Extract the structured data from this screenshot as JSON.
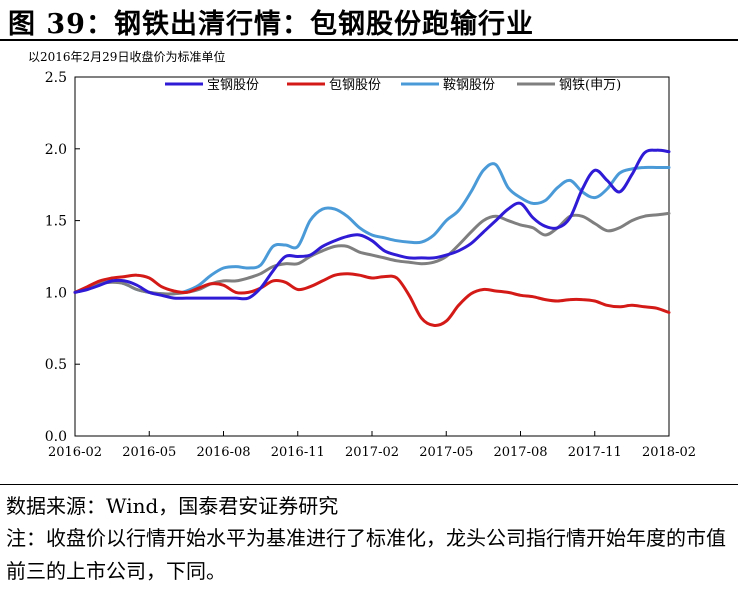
{
  "figure": {
    "title": "图 39：钢铁出清行情：包钢股份跑输行业",
    "subtitle": "以2016年2月29日收盘价为标准单位",
    "source": "数据来源：Wind，国泰君安证券研究",
    "note": "注：收盘价以行情开始水平为基准进行了标准化，龙头公司指行情开始年度的市值前三的上市公司，下同。"
  },
  "chart_data": {
    "type": "line",
    "title": "",
    "xlabel": "",
    "ylabel": "",
    "x_ticks": [
      "2016-02",
      "2016-05",
      "2016-08",
      "2016-11",
      "2017-02",
      "2017-05",
      "2017-08",
      "2017-11",
      "2018-02"
    ],
    "x_range": [
      0,
      24
    ],
    "ylim": [
      0,
      2.5
    ],
    "y_ticks": [
      0.0,
      0.5,
      1.0,
      1.5,
      2.0,
      2.5
    ],
    "y_tick_labels": [
      "0.0",
      "0.5",
      "1.0",
      "1.5",
      "2.0",
      "2.5"
    ],
    "legend_position": "top",
    "series": [
      {
        "name": "宝钢股份",
        "color": "#2f1ad6",
        "x": [
          0,
          0.5,
          1,
          1.5,
          2,
          2.5,
          3,
          3.5,
          4,
          4.5,
          5,
          5.5,
          6,
          6.5,
          7,
          7.5,
          8,
          8.5,
          9,
          9.5,
          10,
          10.5,
          11,
          11.5,
          12,
          12.5,
          13,
          13.5,
          14,
          14.5,
          15,
          15.5,
          16,
          16.5,
          17,
          17.5,
          18,
          18.5,
          19,
          19.5,
          20,
          20.5,
          21,
          21.5,
          22,
          22.5,
          23,
          23.5,
          24
        ],
        "values": [
          1.0,
          1.02,
          1.05,
          1.08,
          1.08,
          1.05,
          1.0,
          0.98,
          0.96,
          0.96,
          0.96,
          0.96,
          0.96,
          0.96,
          0.96,
          1.03,
          1.15,
          1.25,
          1.25,
          1.26,
          1.32,
          1.36,
          1.39,
          1.4,
          1.36,
          1.29,
          1.26,
          1.24,
          1.24,
          1.24,
          1.26,
          1.29,
          1.34,
          1.42,
          1.5,
          1.58,
          1.62,
          1.52,
          1.46,
          1.45,
          1.52,
          1.72,
          1.85,
          1.78,
          1.7,
          1.82,
          1.97,
          1.99,
          1.98
        ]
      },
      {
        "name": "包钢股份",
        "color": "#d41a17",
        "x": [
          0,
          0.5,
          1,
          1.5,
          2,
          2.5,
          3,
          3.5,
          4,
          4.5,
          5,
          5.5,
          6,
          6.5,
          7,
          7.5,
          8,
          8.5,
          9,
          9.5,
          10,
          10.5,
          11,
          11.5,
          12,
          12.5,
          13,
          13.5,
          14,
          14.5,
          15,
          15.5,
          16,
          16.5,
          17,
          17.5,
          18,
          18.5,
          19,
          19.5,
          20,
          20.5,
          21,
          21.5,
          22,
          22.5,
          23,
          23.5,
          24
        ],
        "values": [
          1.0,
          1.04,
          1.08,
          1.1,
          1.11,
          1.12,
          1.1,
          1.04,
          1.01,
          1.0,
          1.03,
          1.06,
          1.05,
          1.0,
          1.0,
          1.03,
          1.08,
          1.07,
          1.02,
          1.04,
          1.08,
          1.12,
          1.13,
          1.12,
          1.1,
          1.11,
          1.1,
          0.98,
          0.82,
          0.77,
          0.8,
          0.91,
          0.99,
          1.02,
          1.01,
          1.0,
          0.98,
          0.97,
          0.95,
          0.94,
          0.95,
          0.95,
          0.94,
          0.91,
          0.9,
          0.91,
          0.9,
          0.89,
          0.86
        ]
      },
      {
        "name": "鞍钢股份",
        "color": "#4a9ad8",
        "x": [
          0,
          0.5,
          1,
          1.5,
          2,
          2.5,
          3,
          3.5,
          4,
          4.5,
          5,
          5.5,
          6,
          6.5,
          7,
          7.5,
          8,
          8.5,
          9,
          9.5,
          10,
          10.5,
          11,
          11.5,
          12,
          12.5,
          13,
          13.5,
          14,
          14.5,
          15,
          15.5,
          16,
          16.5,
          17,
          17.5,
          18,
          18.5,
          19,
          19.5,
          20,
          20.5,
          21,
          21.5,
          22,
          22.5,
          23,
          23.5,
          24
        ],
        "values": [
          1.0,
          1.03,
          1.06,
          1.08,
          1.06,
          1.02,
          1.0,
          0.99,
          0.99,
          1.01,
          1.05,
          1.12,
          1.17,
          1.18,
          1.17,
          1.19,
          1.32,
          1.33,
          1.32,
          1.5,
          1.58,
          1.58,
          1.53,
          1.45,
          1.4,
          1.38,
          1.36,
          1.35,
          1.35,
          1.4,
          1.5,
          1.57,
          1.7,
          1.85,
          1.89,
          1.73,
          1.66,
          1.62,
          1.64,
          1.73,
          1.78,
          1.7,
          1.66,
          1.72,
          1.83,
          1.86,
          1.87,
          1.87,
          1.87
        ]
      },
      {
        "name": "钢铁(申万)",
        "color": "#7f7f7f",
        "x": [
          0,
          0.5,
          1,
          1.5,
          2,
          2.5,
          3,
          3.5,
          4,
          4.5,
          5,
          5.5,
          6,
          6.5,
          7,
          7.5,
          8,
          8.5,
          9,
          9.5,
          10,
          10.5,
          11,
          11.5,
          12,
          12.5,
          13,
          13.5,
          14,
          14.5,
          15,
          15.5,
          16,
          16.5,
          17,
          17.5,
          18,
          18.5,
          19,
          19.5,
          20,
          20.5,
          21,
          21.5,
          22,
          22.5,
          23,
          23.5,
          24
        ],
        "values": [
          1.0,
          1.03,
          1.06,
          1.07,
          1.06,
          1.02,
          1.0,
          0.99,
          0.99,
          1.0,
          1.02,
          1.06,
          1.08,
          1.08,
          1.1,
          1.13,
          1.18,
          1.2,
          1.2,
          1.25,
          1.29,
          1.32,
          1.32,
          1.28,
          1.26,
          1.24,
          1.22,
          1.21,
          1.2,
          1.21,
          1.25,
          1.33,
          1.42,
          1.5,
          1.53,
          1.5,
          1.47,
          1.45,
          1.4,
          1.45,
          1.53,
          1.53,
          1.48,
          1.43,
          1.45,
          1.5,
          1.53,
          1.54,
          1.55
        ]
      }
    ]
  }
}
